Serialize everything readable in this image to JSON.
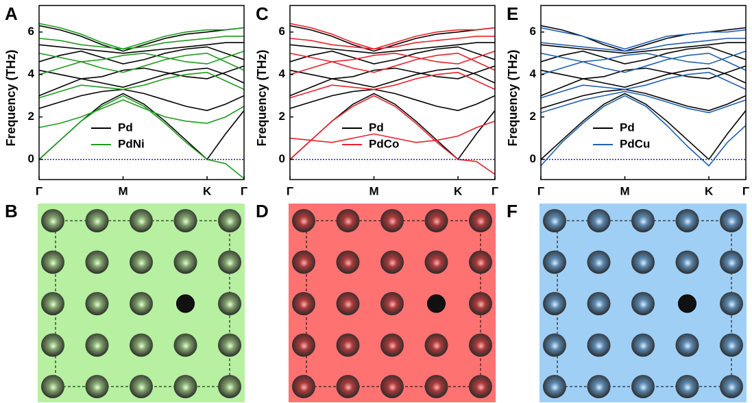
{
  "chart_data": [
    {
      "type": "line",
      "panel": "A",
      "y_label": "Frequency (THz)",
      "x": [
        0,
        0.25,
        0.5,
        0.75,
        1,
        1.25,
        1.5,
        1.75,
        2,
        2.22,
        2.44
      ],
      "xlim": [
        0,
        2.44
      ],
      "xticks": [
        {
          "value": 0,
          "label": "Γ"
        },
        {
          "value": 1,
          "label": "M"
        },
        {
          "value": 2,
          "label": "K"
        },
        {
          "value": 2.44,
          "label": "Γ"
        }
      ],
      "ylim": [
        -0.95,
        7.25
      ],
      "yticks": [
        0,
        2,
        4,
        6
      ],
      "hline": {
        "y": 0,
        "color": "#1a1a8c"
      },
      "series": [
        {
          "name": "Pd",
          "color": "#000000",
          "values": [
            [
              0,
              0.9,
              1.8,
              2.6,
              3.1,
              2.6,
              1.8,
              0.9,
              0,
              1.2,
              2.3
            ],
            [
              2.4,
              2.7,
              3.0,
              3.2,
              3.3,
              3.1,
              2.8,
              2.5,
              2.3,
              2.6,
              3.0
            ],
            [
              3.0,
              3.4,
              3.8,
              3.6,
              3.4,
              3.7,
              4.0,
              4.2,
              4.3,
              4.0,
              3.6
            ],
            [
              4.2,
              4.0,
              3.8,
              3.9,
              4.2,
              4.3,
              4.1,
              3.9,
              3.8,
              4.1,
              4.4
            ],
            [
              4.6,
              4.9,
              5.1,
              4.8,
              4.5,
              4.7,
              5.0,
              5.2,
              5.3,
              5.0,
              4.7
            ],
            [
              5.4,
              5.3,
              5.2,
              5.1,
              5.0,
              5.1,
              5.2,
              5.3,
              5.4,
              5.5,
              5.5
            ],
            [
              6.3,
              6.1,
              5.8,
              5.4,
              5.1,
              5.4,
              5.7,
              5.9,
              6.0,
              6.1,
              6.2
            ]
          ]
        },
        {
          "name": "PdNi",
          "color": "#1e9a1e",
          "values": [
            [
              0,
              0.9,
              1.8,
              2.5,
              3.0,
              2.5,
              1.7,
              0.8,
              0,
              -0.2,
              -0.9
            ],
            [
              1.5,
              1.7,
              2.0,
              2.4,
              2.8,
              2.4,
              2.0,
              1.8,
              1.7,
              2.0,
              2.5
            ],
            [
              2.9,
              3.2,
              3.5,
              3.4,
              3.3,
              3.5,
              3.8,
              4.0,
              4.1,
              3.7,
              3.3
            ],
            [
              4.0,
              4.3,
              4.6,
              4.3,
              4.1,
              4.4,
              4.7,
              4.9,
              5.0,
              4.6,
              4.2
            ],
            [
              5.0,
              4.8,
              4.6,
              4.7,
              4.9,
              5.0,
              4.8,
              4.6,
              4.5,
              4.8,
              5.1
            ],
            [
              5.7,
              5.6,
              5.4,
              5.3,
              5.2,
              5.3,
              5.5,
              5.6,
              5.7,
              5.8,
              5.8
            ],
            [
              6.4,
              6.2,
              5.9,
              5.5,
              5.2,
              5.5,
              5.8,
              6.0,
              6.1,
              6.1,
              6.2
            ]
          ]
        }
      ]
    },
    {
      "type": "line",
      "panel": "C",
      "y_label": "Frequency (THz)",
      "x": [
        0,
        0.25,
        0.5,
        0.75,
        1,
        1.25,
        1.5,
        1.75,
        2,
        2.22,
        2.44
      ],
      "xlim": [
        0,
        2.44
      ],
      "xticks": [
        {
          "value": 0,
          "label": "Γ"
        },
        {
          "value": 1,
          "label": "M"
        },
        {
          "value": 2,
          "label": "K"
        },
        {
          "value": 2.44,
          "label": "Γ"
        }
      ],
      "ylim": [
        -0.95,
        7.25
      ],
      "yticks": [
        0,
        2,
        4,
        6
      ],
      "hline": {
        "y": 0,
        "color": "#1a1a8c"
      },
      "series": [
        {
          "name": "Pd",
          "color": "#000000",
          "values": [
            [
              0,
              0.9,
              1.8,
              2.6,
              3.1,
              2.6,
              1.8,
              0.9,
              0,
              1.2,
              2.3
            ],
            [
              2.4,
              2.7,
              3.0,
              3.2,
              3.3,
              3.1,
              2.8,
              2.5,
              2.3,
              2.6,
              3.0
            ],
            [
              3.0,
              3.4,
              3.8,
              3.6,
              3.4,
              3.7,
              4.0,
              4.2,
              4.3,
              4.0,
              3.6
            ],
            [
              4.2,
              4.0,
              3.8,
              3.9,
              4.2,
              4.3,
              4.1,
              3.9,
              3.8,
              4.1,
              4.4
            ],
            [
              4.6,
              4.9,
              5.1,
              4.8,
              4.5,
              4.7,
              5.0,
              5.2,
              5.3,
              5.0,
              4.7
            ],
            [
              5.4,
              5.3,
              5.2,
              5.1,
              5.0,
              5.1,
              5.2,
              5.3,
              5.4,
              5.5,
              5.5
            ],
            [
              6.3,
              6.1,
              5.8,
              5.4,
              5.1,
              5.4,
              5.7,
              5.9,
              6.0,
              6.1,
              6.2
            ]
          ]
        },
        {
          "name": "PdCo",
          "color": "#e8202a",
          "values": [
            [
              0,
              0.9,
              1.8,
              2.5,
              3.0,
              2.5,
              1.7,
              0.8,
              0,
              -0.1,
              -0.7
            ],
            [
              1.0,
              0.9,
              0.8,
              1.0,
              1.2,
              1.0,
              0.8,
              0.9,
              1.1,
              1.5,
              1.8
            ],
            [
              2.9,
              3.2,
              3.5,
              3.4,
              3.3,
              3.5,
              3.8,
              4.0,
              4.1,
              3.7,
              3.3
            ],
            [
              4.0,
              4.3,
              4.6,
              4.3,
              4.1,
              4.4,
              4.7,
              4.9,
              5.0,
              4.6,
              4.2
            ],
            [
              5.0,
              4.8,
              4.6,
              4.7,
              4.9,
              5.0,
              4.8,
              4.6,
              4.5,
              4.8,
              5.1
            ],
            [
              5.7,
              5.6,
              5.4,
              5.3,
              5.2,
              5.3,
              5.5,
              5.6,
              5.7,
              5.8,
              5.8
            ],
            [
              6.4,
              6.2,
              5.9,
              5.5,
              5.2,
              5.5,
              5.8,
              6.0,
              6.1,
              6.1,
              6.2
            ]
          ]
        }
      ]
    },
    {
      "type": "line",
      "panel": "E",
      "y_label": "Frequency (THz)",
      "x": [
        0,
        0.25,
        0.5,
        0.75,
        1,
        1.25,
        1.5,
        1.75,
        2,
        2.22,
        2.44
      ],
      "xlim": [
        0,
        2.44
      ],
      "xticks": [
        {
          "value": 0,
          "label": "Γ"
        },
        {
          "value": 1,
          "label": "M"
        },
        {
          "value": 2,
          "label": "K"
        },
        {
          "value": 2.44,
          "label": "Γ"
        }
      ],
      "ylim": [
        -0.95,
        7.25
      ],
      "yticks": [
        0,
        2,
        4,
        6
      ],
      "hline": {
        "y": 0,
        "color": "#1a1a8c"
      },
      "series": [
        {
          "name": "Pd",
          "color": "#000000",
          "values": [
            [
              0,
              0.9,
              1.8,
              2.6,
              3.1,
              2.6,
              1.8,
              0.9,
              0,
              1.2,
              2.3
            ],
            [
              2.4,
              2.7,
              3.0,
              3.2,
              3.3,
              3.1,
              2.8,
              2.5,
              2.3,
              2.6,
              3.0
            ],
            [
              3.0,
              3.4,
              3.8,
              3.6,
              3.4,
              3.7,
              4.0,
              4.2,
              4.3,
              4.0,
              3.6
            ],
            [
              4.2,
              4.0,
              3.8,
              3.9,
              4.2,
              4.3,
              4.1,
              3.9,
              3.8,
              4.1,
              4.4
            ],
            [
              4.6,
              4.9,
              5.1,
              4.8,
              4.5,
              4.7,
              5.0,
              5.2,
              5.3,
              5.0,
              4.7
            ],
            [
              5.4,
              5.3,
              5.2,
              5.1,
              5.0,
              5.1,
              5.2,
              5.3,
              5.4,
              5.5,
              5.5
            ],
            [
              6.3,
              6.1,
              5.8,
              5.4,
              5.1,
              5.4,
              5.7,
              5.9,
              6.0,
              6.1,
              6.2
            ]
          ]
        },
        {
          "name": "PdCu",
          "color": "#1f5fb0",
          "values": [
            [
              -0.3,
              0.8,
              1.7,
              2.5,
              3.0,
              2.5,
              1.6,
              0.6,
              -0.3,
              0.8,
              1.6
            ],
            [
              2.2,
              2.5,
              2.8,
              3.0,
              3.2,
              3.0,
              2.7,
              2.4,
              2.2,
              2.5,
              2.8
            ],
            [
              2.9,
              3.2,
              3.5,
              3.4,
              3.3,
              3.5,
              3.8,
              4.0,
              4.1,
              3.7,
              3.3
            ],
            [
              4.0,
              4.3,
              4.6,
              4.3,
              4.1,
              4.4,
              4.7,
              4.9,
              5.0,
              4.6,
              4.2
            ],
            [
              5.0,
              4.8,
              4.6,
              4.7,
              4.9,
              5.0,
              4.8,
              4.6,
              4.5,
              4.8,
              5.1
            ],
            [
              5.5,
              5.4,
              5.3,
              5.2,
              5.1,
              5.2,
              5.4,
              5.5,
              5.6,
              5.7,
              5.7
            ],
            [
              6.2,
              6.0,
              5.8,
              5.5,
              5.2,
              5.5,
              5.8,
              5.9,
              6.0,
              6.0,
              6.1
            ]
          ]
        }
      ]
    }
  ],
  "lattice_panels": [
    {
      "label": "B",
      "background": "#b6f0a0",
      "sphere": "#7f9f6a",
      "highlight": "#e6ffd8"
    },
    {
      "label": "D",
      "background": "#ff7272",
      "sphere": "#a83a3a",
      "highlight": "#ffb0b0"
    },
    {
      "label": "F",
      "background": "#9fcff5",
      "sphere": "#5a86ad",
      "highlight": "#d8efff"
    }
  ]
}
